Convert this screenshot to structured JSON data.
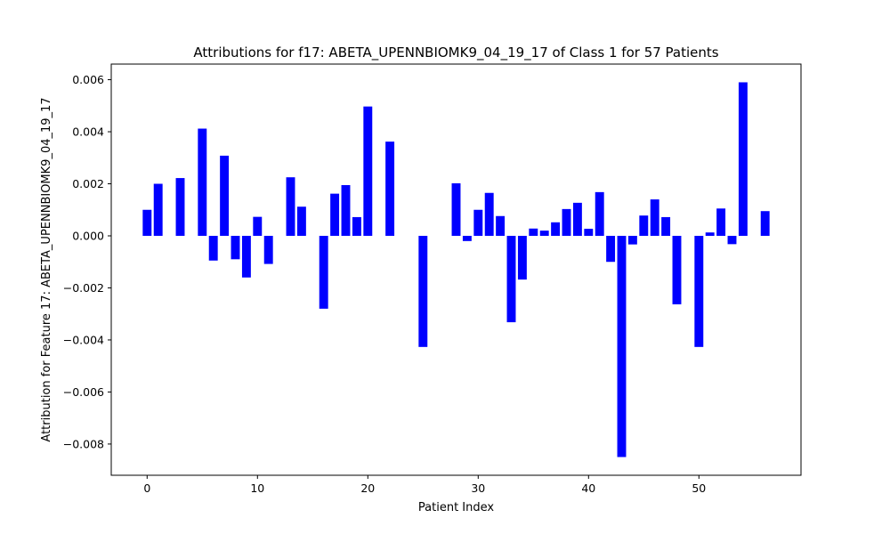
{
  "chart_data": {
    "type": "bar",
    "title": "Attributions for f17: ABETA_UPENNBIOMK9_04_19_17 of Class 1 for 57 Patients",
    "xlabel": "Patient Index",
    "ylabel": "Attribution for Feature 17: ABETA_UPENNBIOMK9_04_19_17",
    "xlim": [
      -3.25,
      59.25
    ],
    "ylim": [
      -0.0092,
      0.0066
    ],
    "xticks": [
      0,
      10,
      20,
      30,
      40,
      50
    ],
    "yticks": [
      -0.008,
      -0.006,
      -0.004,
      -0.002,
      0.0,
      0.002,
      0.004,
      0.006
    ],
    "xtick_labels": [
      "0",
      "10",
      "20",
      "30",
      "40",
      "50"
    ],
    "ytick_labels": [
      "−0.008",
      "−0.006",
      "−0.004",
      "−0.002",
      "0.000",
      "0.002",
      "0.004",
      "0.006"
    ],
    "bar_color": "#0000ff",
    "grid": false,
    "x": [
      0,
      1,
      2,
      3,
      4,
      5,
      6,
      7,
      8,
      9,
      10,
      11,
      12,
      13,
      14,
      15,
      16,
      17,
      18,
      19,
      20,
      21,
      22,
      23,
      24,
      25,
      26,
      27,
      28,
      29,
      30,
      31,
      32,
      33,
      34,
      35,
      36,
      37,
      38,
      39,
      40,
      41,
      42,
      43,
      44,
      45,
      46,
      47,
      48,
      49,
      50,
      51,
      52,
      53,
      54,
      55,
      56
    ],
    "values": [
      0.001,
      0.002,
      0.0,
      0.00222,
      0.0,
      0.00412,
      -0.00095,
      0.00308,
      -0.0009,
      -0.0016,
      0.00073,
      -0.00108,
      0.0,
      0.00225,
      0.00112,
      0.0,
      -0.0028,
      0.00162,
      0.00195,
      0.00072,
      0.00497,
      0.0,
      0.00362,
      0.0,
      0.0,
      -0.00427,
      0.0,
      0.0,
      0.00202,
      -0.0002,
      0.001,
      0.00165,
      0.00076,
      -0.00332,
      -0.00168,
      0.00028,
      0.0002,
      0.00052,
      0.00103,
      0.00127,
      0.00027,
      0.00168,
      -0.001,
      -0.0085,
      -0.00033,
      0.00078,
      0.0014,
      0.00072,
      -0.00263,
      0.0,
      -0.00427,
      0.00013,
      0.00105,
      -0.00032,
      0.0059,
      0.0,
      0.00095
    ]
  }
}
